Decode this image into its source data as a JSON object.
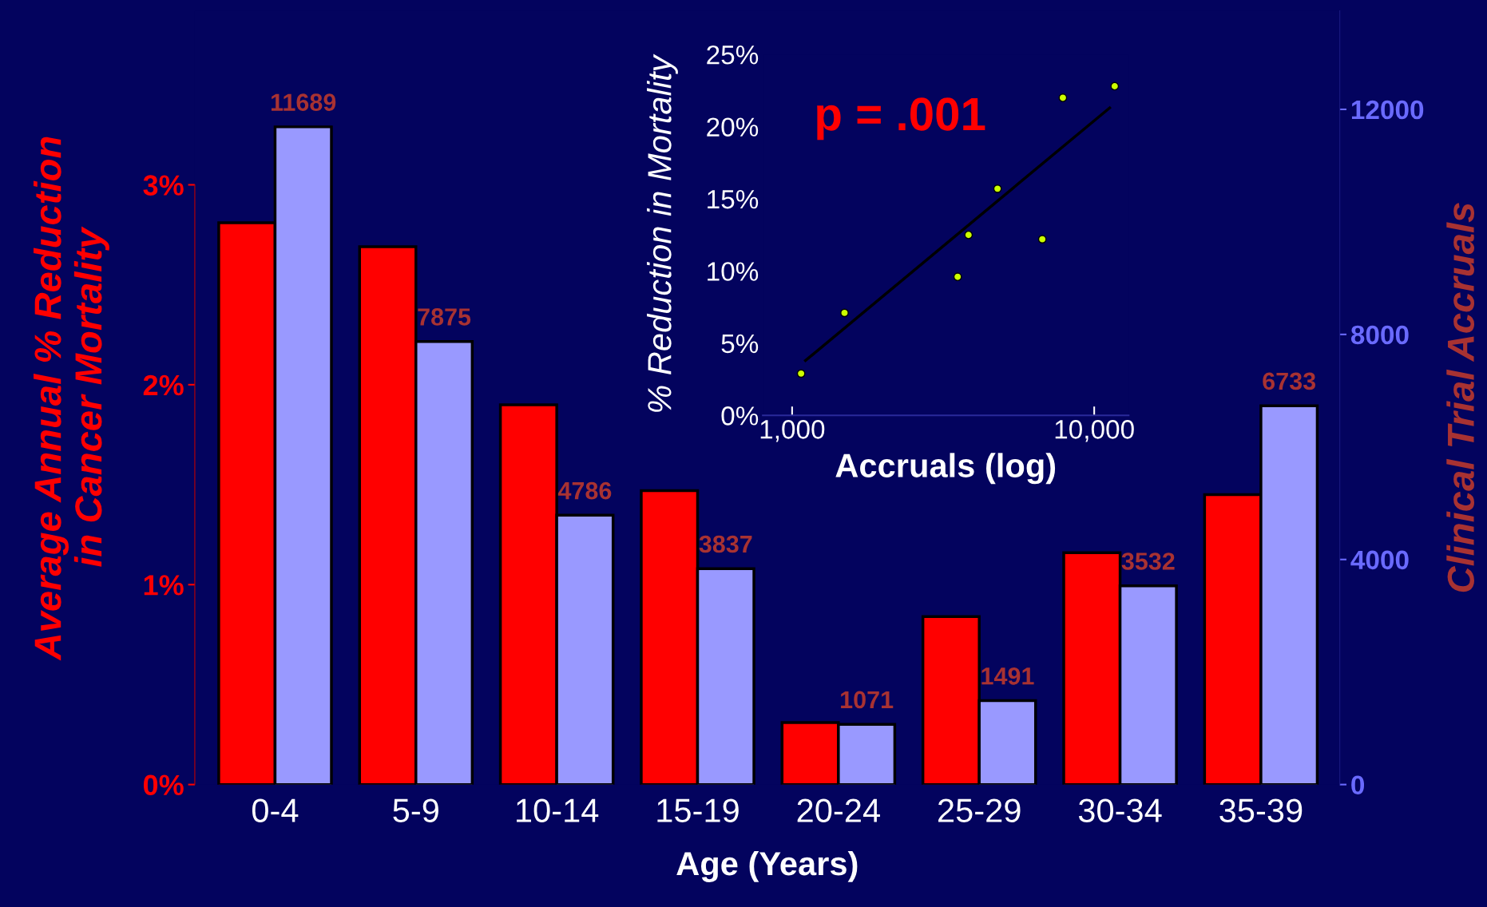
{
  "chart_data": [
    {
      "type": "bar",
      "xlabel": "Age (Years)",
      "ylabel": "Average Annual % Reduction\nin Cancer Mortality",
      "y2label": "Clinical Trial Accruals",
      "categories": [
        "0-4",
        "5-9",
        "10-14",
        "15-19",
        "20-24",
        "25-29",
        "30-34",
        "35-39"
      ],
      "series": [
        {
          "color": "#ff0000",
          "values": [
            2.81,
            2.69,
            1.9,
            1.47,
            0.31,
            0.84,
            1.16,
            1.45
          ]
        },
        {
          "color": "#9999ff",
          "axis": "y2",
          "values": [
            11689,
            7875,
            4786,
            3837,
            1071,
            1491,
            3532,
            6733
          ],
          "data_labels": true
        }
      ],
      "ylim": [
        0,
        3.87
      ],
      "yticks": [
        {
          "value": 0,
          "label": "0%"
        },
        {
          "value": 1,
          "label": "1%"
        },
        {
          "value": 2,
          "label": "2%"
        },
        {
          "value": 3,
          "label": "3%"
        }
      ],
      "y2lim": [
        0,
        13750
      ],
      "y2ticks": [
        0,
        4000,
        8000,
        12000
      ],
      "grid": false,
      "legend": false
    },
    {
      "type": "scatter",
      "xlabel": "Accruals (log)",
      "ylabel": "% Reduction in Mortality",
      "log": "x",
      "series": [
        {
          "type": "scatter",
          "color": "#ccff00",
          "marker": "circle",
          "x": [
            1071,
            1491,
            3532,
            3837,
            4786,
            6733,
            7875,
            11689
          ],
          "values": [
            2.9,
            7.1,
            9.6,
            12.5,
            15.7,
            12.2,
            22.0,
            22.8
          ]
        },
        {
          "type": "line",
          "color": "#000000",
          "x": [
            1107,
            11250
          ],
          "values": [
            3.8,
            21.3
          ]
        }
      ],
      "xlim": [
        800,
        13000
      ],
      "xticks": [
        {
          "value": 1000,
          "label": "1,000"
        },
        {
          "value": 10000,
          "label": "10,000"
        }
      ],
      "ylim": [
        0,
        25
      ],
      "yticks": [
        {
          "value": 0,
          "label": "0%"
        },
        {
          "value": 5,
          "label": "5%"
        },
        {
          "value": 10,
          "label": "10%"
        },
        {
          "value": 15,
          "label": "15%"
        },
        {
          "value": 20,
          "label": "20%"
        },
        {
          "value": 25,
          "label": "25%"
        }
      ],
      "annotations": [
        "p = .001"
      ],
      "grid": false
    }
  ]
}
